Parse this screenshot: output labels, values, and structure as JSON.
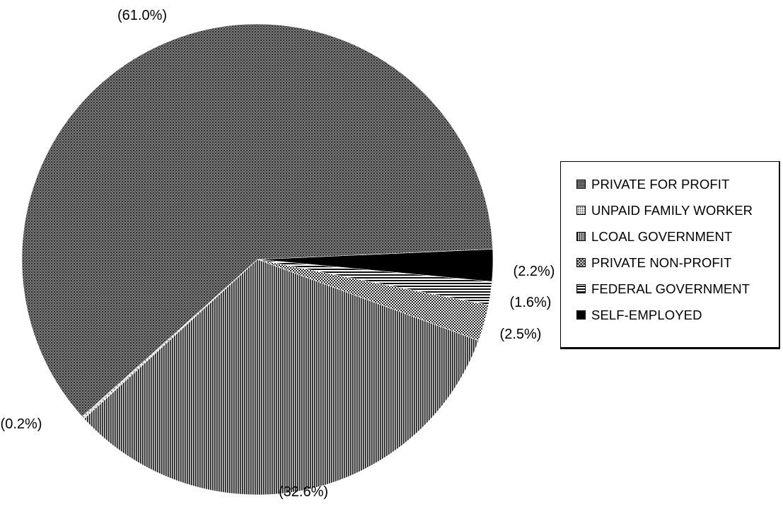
{
  "chart_data": {
    "type": "pie",
    "title": "",
    "slices": [
      {
        "label": "PRIVATE FOR PROFIT",
        "value": 61.0,
        "display": "(61.0%)",
        "pattern": "fine-grid"
      },
      {
        "label": "UNPAID FAMILY WORKER",
        "value": 0.2,
        "display": "(0.2%)",
        "pattern": "light-dots"
      },
      {
        "label": "LCOAL GOVERNMENT",
        "value": 32.6,
        "display": "(32.6%)",
        "pattern": "vertical-lines"
      },
      {
        "label": "PRIVATE NON-PROFIT",
        "value": 2.5,
        "display": "(2.5%)",
        "pattern": "checker"
      },
      {
        "label": "FEDERAL GOVERNMENT",
        "value": 1.6,
        "display": "(1.6%)",
        "pattern": "horizontal-lines"
      },
      {
        "label": "SELF-EMPLOYED",
        "value": 2.2,
        "display": "(2.2%)",
        "pattern": "solid"
      }
    ],
    "legend_position": "right"
  },
  "legend": {
    "items": [
      "PRIVATE FOR PROFIT",
      "UNPAID FAMILY WORKER",
      "LCOAL GOVERNMENT",
      "PRIVATE NON-PROFIT",
      "FEDERAL GOVERNMENT",
      "SELF-EMPLOYED"
    ]
  }
}
